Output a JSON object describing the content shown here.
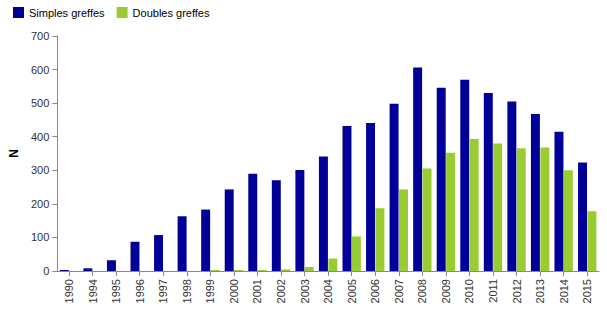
{
  "chart_data": {
    "type": "bar",
    "y_label": "N",
    "categories": [
      "1990",
      "1994",
      "1995",
      "1996",
      "1997",
      "1998",
      "1999",
      "2000",
      "2001",
      "2002",
      "2003",
      "2004",
      "2005",
      "2006",
      "2007",
      "2008",
      "2009",
      "2010",
      "2011",
      "2012",
      "2013",
      "2014",
      "2015"
    ],
    "series": [
      {
        "name": "Simples greffes",
        "color": "#000099",
        "values": [
          3,
          8,
          32,
          87,
          107,
          163,
          183,
          243,
          290,
          270,
          301,
          341,
          432,
          441,
          498,
          606,
          546,
          570,
          530,
          505,
          468,
          415,
          323
        ]
      },
      {
        "name": "Doubles greffes",
        "color": "#99cc33",
        "values": [
          0,
          0,
          0,
          0,
          0,
          0,
          3,
          3,
          3,
          5,
          12,
          37,
          103,
          187,
          243,
          305,
          352,
          393,
          380,
          366,
          368,
          300,
          178
        ]
      }
    ],
    "ylim": [
      0,
      700
    ],
    "yticks": [
      0,
      100,
      200,
      300,
      400,
      500,
      600,
      700
    ],
    "grid": false,
    "legend": "top-left"
  }
}
